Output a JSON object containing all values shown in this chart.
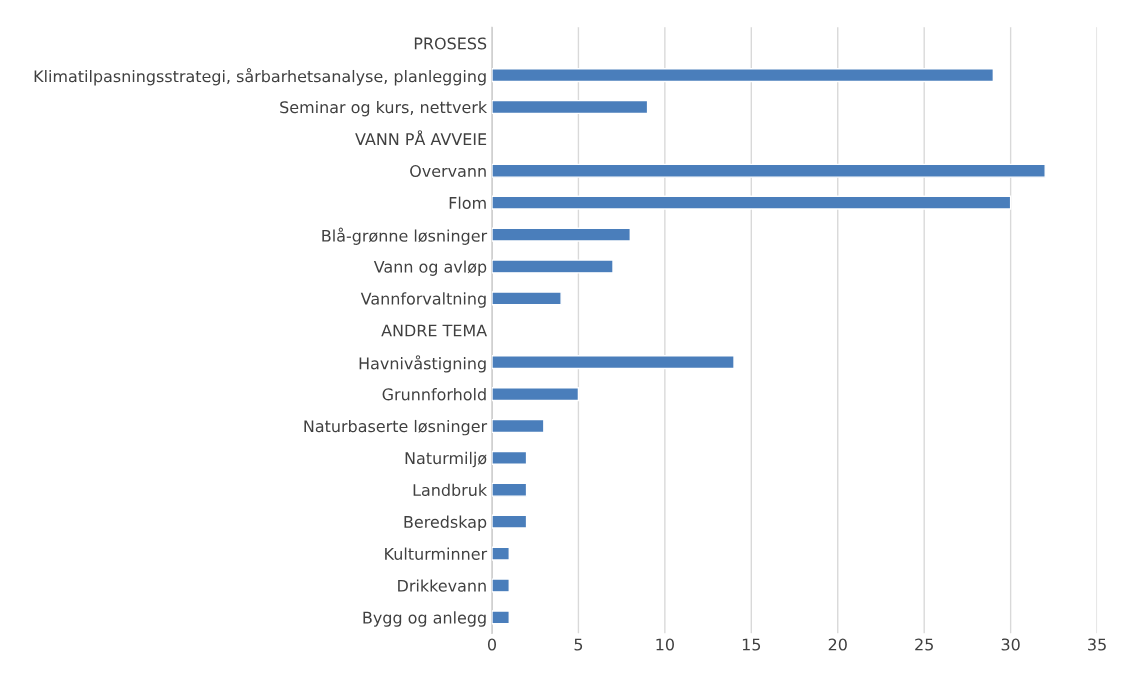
{
  "chart_data": {
    "type": "bar",
    "orientation": "horizontal",
    "categories": [
      "PROSESS",
      "Klimatilpasningsstrategi, sårbarhetsanalyse, planlegging",
      "Seminar og kurs, nettverk",
      "VANN PÅ AVVEIE",
      "Overvann",
      "Flom",
      "Blå-grønne løsninger",
      "Vann og avløp",
      "Vannforvaltning",
      "ANDRE TEMA",
      "Havnivåstigning",
      "Grunnforhold",
      "Naturbaserte løsninger",
      "Naturmiljø",
      "Landbruk",
      "Beredskap",
      "Kulturminner",
      "Drikkevann",
      "Bygg og anlegg"
    ],
    "values": [
      null,
      29,
      9,
      null,
      32,
      30,
      8,
      7,
      4,
      null,
      14,
      5,
      3,
      2,
      2,
      2,
      1,
      1,
      1
    ],
    "color": "#4a7ebb",
    "xlim": [
      0,
      35
    ],
    "xticks": [
      0,
      5,
      10,
      15,
      20,
      25,
      30,
      35
    ],
    "grid": "x"
  }
}
